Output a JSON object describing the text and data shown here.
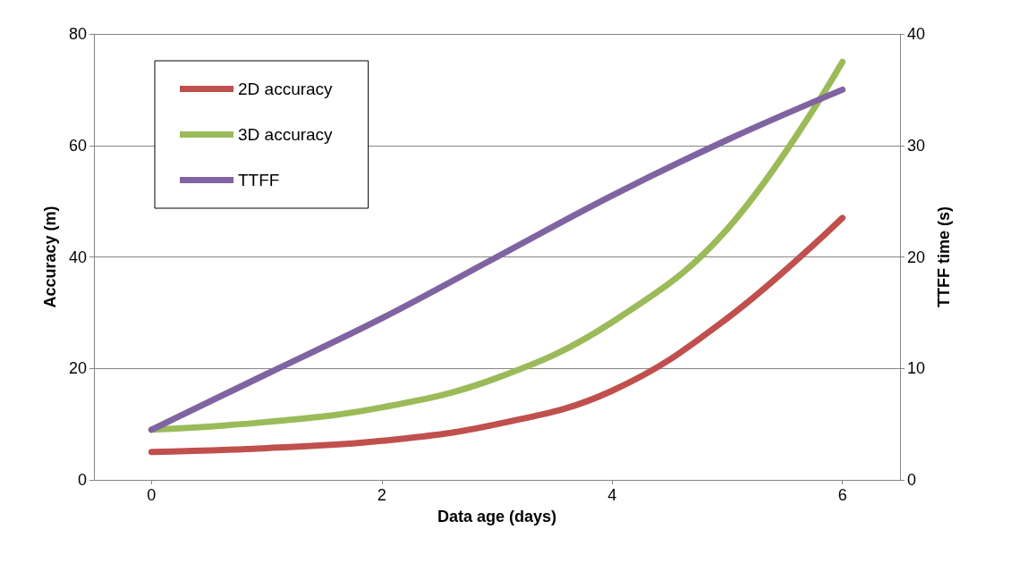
{
  "chart_data": {
    "type": "line",
    "xlabel": "Data age (days)",
    "ylabel": "Accuracy (m)",
    "y2label": "TTFF time (s)",
    "x": [
      0,
      1,
      2,
      3,
      4,
      5,
      6
    ],
    "series": [
      {
        "name": "2D accuracy",
        "color": "#c0504d",
        "values": [
          5,
          5.7,
          7,
          10,
          16,
          29,
          47
        ]
      },
      {
        "name": "3D accuracy",
        "color": "#9bbb59",
        "values": [
          9,
          10.4,
          13,
          18.3,
          28.3,
          45,
          75
        ]
      },
      {
        "name": "TTFF",
        "color": "#8064a2",
        "axis": "y2",
        "values": [
          4.5,
          9.5,
          14.5,
          20,
          25.5,
          30.5,
          35
        ]
      }
    ],
    "xlim": [
      -0.5,
      6.5
    ],
    "xticks": [
      0,
      2,
      4,
      6
    ],
    "ylim": [
      0,
      80
    ],
    "yticks": [
      0,
      20,
      40,
      60,
      80
    ],
    "y2lim": [
      0,
      40
    ],
    "y2ticks": [
      0,
      10,
      20,
      30,
      40
    ],
    "grid": "y",
    "legend": "top left",
    "marker": "none",
    "line_style": "solid"
  }
}
